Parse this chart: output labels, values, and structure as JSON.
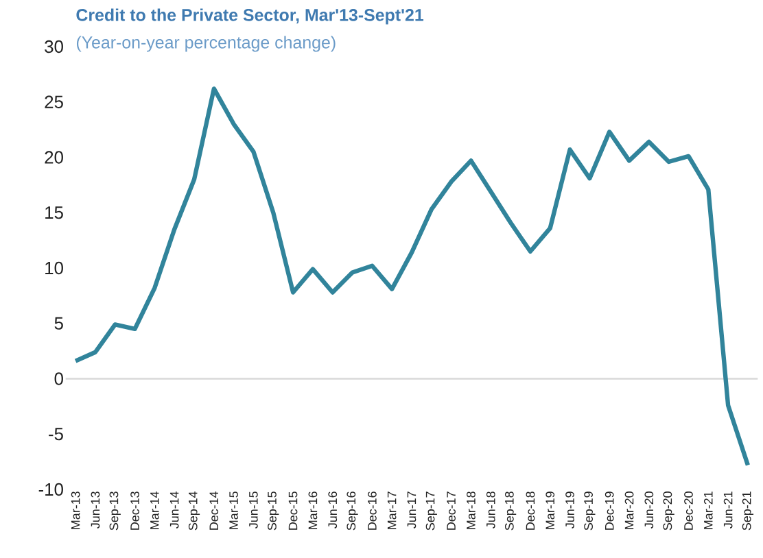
{
  "chart_data": {
    "type": "line",
    "title": "Credit to the Private Sector, Mar'13-Sept'21",
    "subtitle": "(Year-on-year percentage change)",
    "categories": [
      "Mar-13",
      "Jun-13",
      "Sep-13",
      "Dec-13",
      "Mar-14",
      "Jun-14",
      "Sep-14",
      "Dec-14",
      "Mar-15",
      "Jun-15",
      "Sep-15",
      "Dec-15",
      "Mar-16",
      "Jun-16",
      "Sep-16",
      "Dec-16",
      "Mar-17",
      "Jun-17",
      "Sep-17",
      "Dec-17",
      "Mar-18",
      "Jun-18",
      "Sep-18",
      "Dec-18",
      "Mar-19",
      "Jun-19",
      "Sep-19",
      "Dec-19",
      "Mar-20",
      "Jun-20",
      "Sep-20",
      "Dec-20",
      "Mar-21",
      "Jun-21",
      "Sep-21"
    ],
    "series": [
      {
        "color": "#31849b",
        "values": [
          1.6,
          2.4,
          4.9,
          4.5,
          8.2,
          13.5,
          18,
          26.2,
          23,
          20.5,
          15,
          7.8,
          9.9,
          7.8,
          9.6,
          10.2,
          8.1,
          11.4,
          15.3,
          17.8,
          19.7,
          16.9,
          14.1,
          11.5,
          13.6,
          20.7,
          18.1,
          22.3,
          19.7,
          21.4,
          19.6,
          20.1,
          17.1,
          -2.4,
          -7.8
        ]
      }
    ],
    "ylim": [
      -10,
      30
    ],
    "yticks": [
      -10,
      -5,
      0,
      5,
      10,
      15,
      20,
      25,
      30
    ],
    "ref_lines": [
      {
        "axis": "y",
        "value": 0,
        "color": "#d9d9d9"
      }
    ],
    "grid": false,
    "marker": "none",
    "line_style": "solid"
  }
}
